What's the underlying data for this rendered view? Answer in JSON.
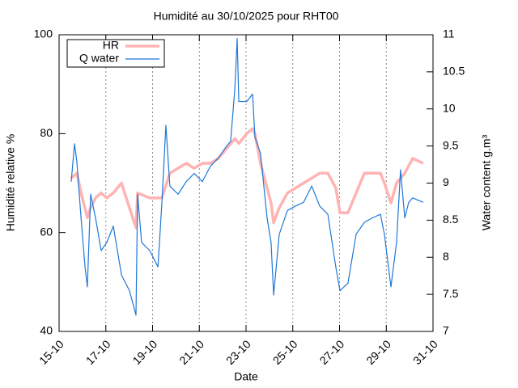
{
  "chart_data": {
    "type": "line",
    "title": "Humidité au 30/10/2025 pour RHT00",
    "xlabel": "Date",
    "ylabel": "Humidité relative %",
    "y2label": "Water content g.m³",
    "xlim": [
      15,
      31
    ],
    "xticks": [
      {
        "value": 15,
        "label": "15-10"
      },
      {
        "value": 17,
        "label": "17-10"
      },
      {
        "value": 19,
        "label": "19-10"
      },
      {
        "value": 21,
        "label": "21-10"
      },
      {
        "value": 23,
        "label": "23-10"
      },
      {
        "value": 25,
        "label": "25-10"
      },
      {
        "value": 27,
        "label": "27-10"
      },
      {
        "value": 29,
        "label": "29-10"
      },
      {
        "value": 31,
        "label": "31-10"
      }
    ],
    "ylim": [
      40,
      100
    ],
    "yticks": [
      40,
      60,
      80,
      100
    ],
    "y2lim": [
      7,
      11
    ],
    "y2ticks": [
      7,
      7.5,
      8,
      8.5,
      9,
      9.5,
      10,
      10.5,
      11
    ],
    "grid": "x",
    "legend": "top-left",
    "series": [
      {
        "name": "HR",
        "color": "#ffb3b3",
        "x": [
          15.52,
          15.76,
          15.94,
          16.21,
          16.35,
          16.56,
          16.8,
          17.04,
          17.32,
          17.67,
          18.01,
          18.29,
          18.36,
          18.88,
          19.23,
          19.4,
          19.74,
          20.09,
          20.44,
          20.78,
          21.13,
          21.48,
          21.82,
          22.17,
          22.52,
          22.69,
          23.03,
          23.28,
          23.38,
          23.62,
          23.9,
          24.07,
          24.18,
          24.42,
          24.77,
          25.46,
          25.81,
          26.15,
          26.5,
          26.84,
          27.02,
          27.36,
          27.71,
          28.06,
          28.75,
          28.92,
          29.2,
          29.44,
          29.79,
          30.13,
          30.58
        ],
        "values": [
          71,
          72,
          68,
          63,
          65,
          67,
          68,
          67,
          68,
          70,
          65,
          61,
          68,
          67,
          67,
          67,
          72,
          73,
          74,
          73,
          74,
          74,
          75,
          77,
          79,
          78,
          80,
          81,
          80,
          74,
          69,
          66,
          62,
          65,
          68,
          70,
          71,
          72,
          72,
          69,
          64,
          64,
          68,
          72,
          72,
          70,
          66,
          70,
          72,
          75,
          74
        ]
      },
      {
        "name": "Q water",
        "color": "#1f78d8",
        "axis": "y2",
        "x": [
          15.52,
          15.66,
          15.76,
          15.94,
          16.11,
          16.21,
          16.35,
          16.56,
          16.8,
          17.04,
          17.32,
          17.67,
          18.01,
          18.29,
          18.36,
          18.53,
          18.88,
          19.23,
          19.4,
          19.57,
          19.74,
          20.09,
          20.44,
          20.78,
          21.13,
          21.48,
          21.82,
          22.17,
          22.34,
          22.52,
          22.62,
          22.69,
          23.03,
          23.28,
          23.38,
          23.62,
          23.9,
          24.07,
          24.18,
          24.42,
          24.77,
          25.11,
          25.46,
          25.81,
          26.15,
          26.5,
          26.84,
          27.02,
          27.36,
          27.71,
          28.06,
          28.4,
          28.75,
          28.92,
          29.2,
          29.44,
          29.61,
          29.79,
          29.96,
          30.13,
          30.58
        ],
        "values": [
          9.02,
          9.53,
          9.29,
          8.53,
          7.87,
          7.6,
          8.85,
          8.53,
          8.09,
          8.2,
          8.42,
          7.76,
          7.55,
          7.22,
          8.85,
          8.2,
          8.09,
          7.87,
          8.74,
          9.78,
          8.96,
          8.85,
          9.02,
          9.13,
          9.02,
          9.23,
          9.34,
          9.5,
          9.56,
          10.27,
          10.95,
          10.1,
          10.1,
          10.2,
          9.62,
          9.4,
          8.53,
          8.2,
          7.49,
          8.31,
          8.63,
          8.69,
          8.74,
          8.96,
          8.69,
          8.58,
          7.87,
          7.55,
          7.65,
          8.31,
          8.47,
          8.53,
          8.58,
          8.31,
          7.6,
          8.2,
          9.18,
          8.53,
          8.74,
          8.8,
          8.74
        ]
      }
    ]
  }
}
